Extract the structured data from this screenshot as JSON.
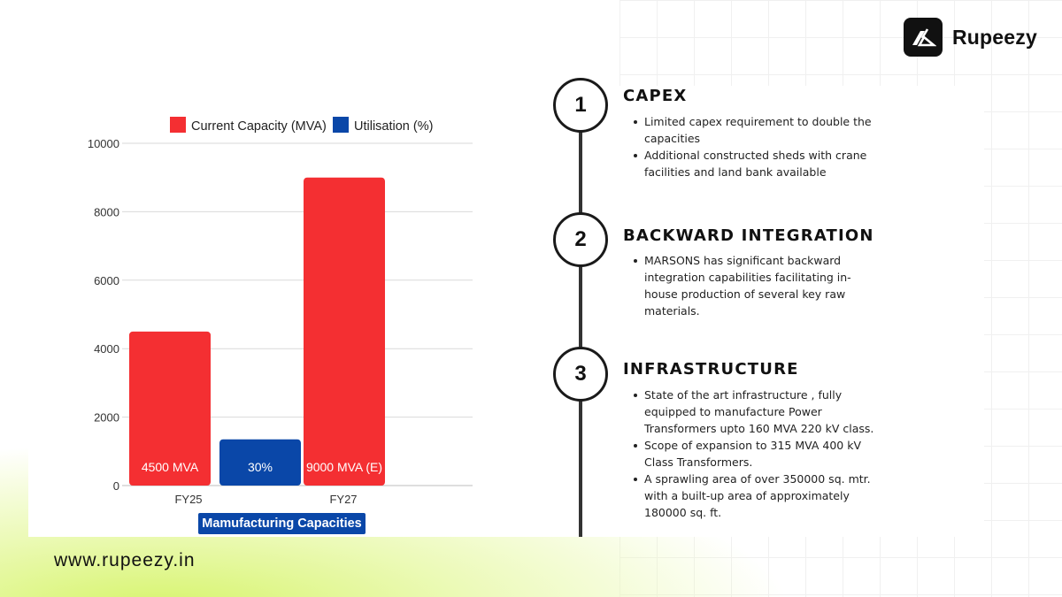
{
  "brand": {
    "name": "Rupeezy",
    "website": "www.rupeezy.in"
  },
  "chart_data": {
    "type": "bar",
    "categories": [
      "FY25",
      "FY27"
    ],
    "series": [
      {
        "name": "Current Capacity (MVA)",
        "color": "#f42f32"
      },
      {
        "name": "Utilisation (%)",
        "color": "#0a47a8"
      }
    ],
    "bars": [
      {
        "category": "FY25",
        "series": "Current Capacity (MVA)",
        "value": 4500,
        "label": "4500 MVA"
      },
      {
        "category": "FY25",
        "series": "Utilisation (%)",
        "value": 1350,
        "label": "30%"
      },
      {
        "category": "FY27",
        "series": "Current Capacity (MVA)",
        "value": 9000,
        "label": "9000 MVA (E)"
      }
    ],
    "ylim": [
      0,
      10000
    ],
    "yticks": [
      0,
      2000,
      4000,
      6000,
      8000,
      10000
    ],
    "grid": true,
    "legend_position": "top",
    "caption": "Mamufacturing Capacities"
  },
  "steps": [
    {
      "number": "1",
      "title": "CAPEX",
      "bullets": [
        "Limited capex requirement to double the capacities",
        "Additional constructed sheds with crane facilities and land bank available"
      ]
    },
    {
      "number": "2",
      "title": "BACKWARD INTEGRATION",
      "bullets": [
        "MARSONS has significant backward integration capabilities facilitating in-house production of several key raw materials."
      ]
    },
    {
      "number": "3",
      "title": "INFRASTRUCTURE",
      "bullets": [
        "State of the art infrastructure , fully equipped to manufacture Power Transformers upto 160 MVA 220 kV class.",
        "Scope of expansion to 315 MVA 400 kV Class Transformers.",
        "A sprawling area of over 350000 sq. mtr. with a built-up area of approximately 180000 sq. ft."
      ]
    }
  ]
}
